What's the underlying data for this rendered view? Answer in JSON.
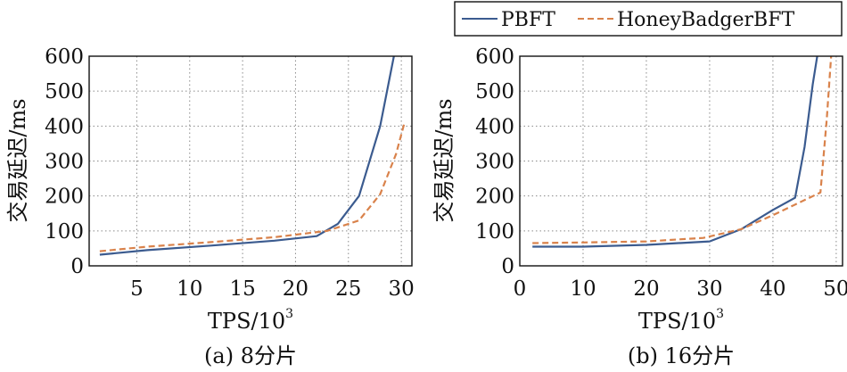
{
  "legend": {
    "entries": [
      {
        "label": "PBFT",
        "color": "#3b5b8f",
        "dash": "solid"
      },
      {
        "label": "HoneyBadgerBFT",
        "color": "#d9824b",
        "dash": "dashed"
      }
    ]
  },
  "chart_data": [
    {
      "type": "line",
      "caption": "(a) 8分片",
      "xlabel": "TPS/10",
      "xlabel_sup": "3",
      "ylabel": "交易延迟/ms",
      "xlim": [
        0.5,
        31
      ],
      "ylim": [
        0,
        600
      ],
      "xticks": [
        5,
        10,
        15,
        20,
        25,
        30
      ],
      "yticks": [
        0,
        100,
        200,
        300,
        400,
        500,
        600
      ],
      "grid": true,
      "series": [
        {
          "name": "PBFT",
          "x": [
            1.5,
            6,
            12,
            18,
            22,
            24,
            26,
            28,
            29.3
          ],
          "y": [
            32,
            45,
            58,
            72,
            85,
            120,
            200,
            400,
            600
          ]
        },
        {
          "name": "HoneyBadgerBFT",
          "x": [
            1.5,
            6,
            12,
            18,
            23,
            26,
            28,
            29.5,
            30.3
          ],
          "y": [
            42,
            55,
            68,
            82,
            100,
            130,
            205,
            320,
            410
          ]
        }
      ]
    },
    {
      "type": "line",
      "caption": "(b) 16分片",
      "xlabel": "TPS/10",
      "xlabel_sup": "3",
      "ylabel": "交易延迟/ms",
      "xlim": [
        0,
        51
      ],
      "ylim": [
        0,
        600
      ],
      "xticks": [
        0,
        10,
        20,
        30,
        40,
        50
      ],
      "yticks": [
        0,
        100,
        200,
        300,
        400,
        500,
        600
      ],
      "grid": true,
      "series": [
        {
          "name": "PBFT",
          "x": [
            2,
            10,
            20,
            30,
            35,
            40,
            43.5,
            45,
            46.3,
            47
          ],
          "y": [
            55,
            55,
            60,
            70,
            105,
            160,
            195,
            340,
            520,
            600
          ]
        },
        {
          "name": "HoneyBadgerBFT",
          "x": [
            2,
            10,
            20,
            29,
            35,
            40,
            47.5,
            48.5,
            49.2
          ],
          "y": [
            65,
            67,
            70,
            80,
            105,
            145,
            210,
            420,
            600
          ]
        }
      ]
    }
  ]
}
